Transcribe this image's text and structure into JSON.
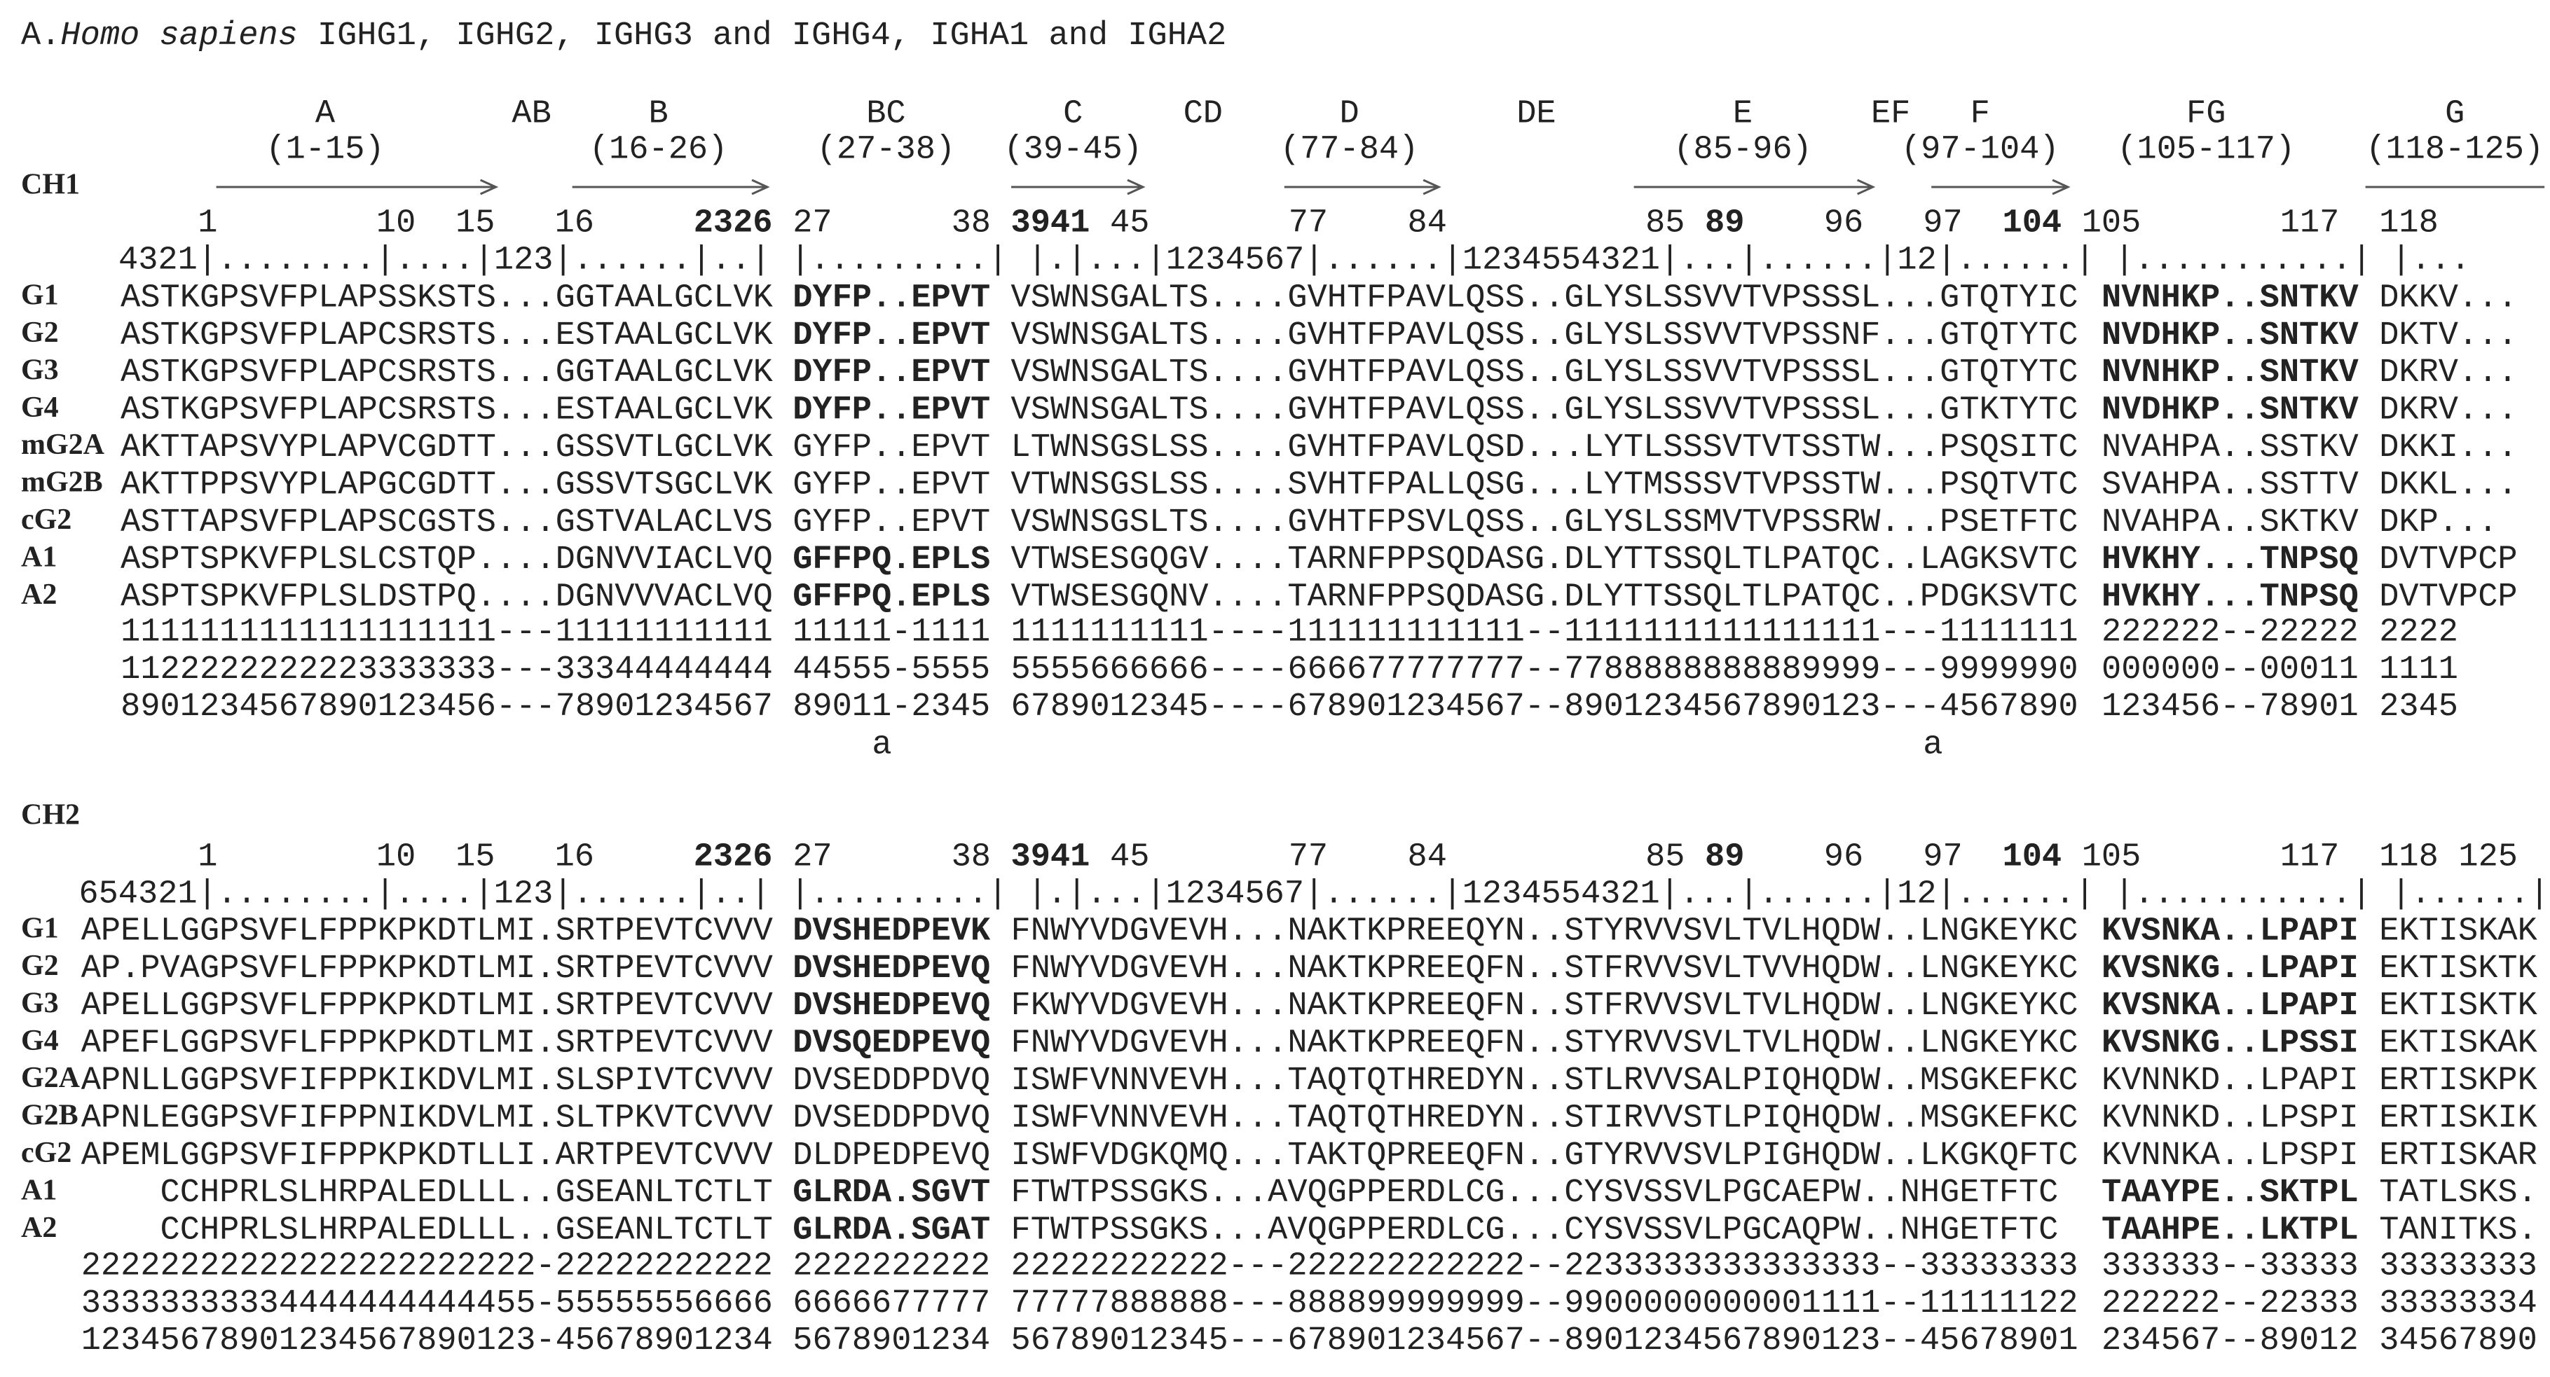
{
  "title": {
    "prefix": "A.",
    "species": "Homo sapiens",
    "rest": "IGHG1, IGHG2, IGHG3 and IGHG4, IGHA1 and IGHA2"
  },
  "ch1": {
    "label": "CH1",
    "strands": [
      {
        "name": "A",
        "range": "(1-15)"
      },
      {
        "name": "AB"
      },
      {
        "name": "B",
        "range": "(16-26)"
      },
      {
        "name": "BC",
        "range": "(27-38)",
        "color": "#d42a2a"
      },
      {
        "name": "C",
        "range": "(39-45)"
      },
      {
        "name": "CD"
      },
      {
        "name": "D",
        "range": "(77-84)"
      },
      {
        "name": "DE"
      },
      {
        "name": "E",
        "range": "(85-96)"
      },
      {
        "name": "EF"
      },
      {
        "name": "F",
        "range": "(97-104)"
      },
      {
        "name": "FG",
        "range": "(105-117)",
        "color": "#d42a2a"
      },
      {
        "name": "G",
        "range": "(118-125)"
      }
    ],
    "numbers": [
      "1",
      "10",
      "15",
      "16",
      "2326",
      "27",
      "38",
      "3941",
      "45",
      "77",
      "84",
      "85",
      "89",
      "96",
      "97",
      "104",
      "105",
      "117",
      "118"
    ],
    "ruler": "4321|........|....|123|......|..| |.........| |.|...|1234567|......|1234554321|...|......|12|......| |...........| |...",
    "rows": [
      {
        "label": "G1",
        "bold": true,
        "segments": [
          "ASTKGPSVFPLAPSSKSTS...GGTAALGCLVK",
          "DYFP..EPVT",
          "VSWNSGALTS....GVHTFPAVLQSS..GLYSLSSVVTVPSSSL...GTQTYIC",
          "NVNHKP..SNTKV",
          "DKKV..."
        ]
      },
      {
        "label": "G2",
        "bold": true,
        "segments": [
          "ASTKGPSVFPLAPCSRSTS...ESTAALGCLVK",
          "DYFP..EPVT",
          "VSWNSGALTS....GVHTFPAVLQSS..GLYSLSSVVTVPSSNF...GTQTYTC",
          "NVDHKP..SNTKV",
          "DKTV..."
        ]
      },
      {
        "label": "G3",
        "bold": true,
        "segments": [
          "ASTKGPSVFPLAPCSRSTS...GGTAALGCLVK",
          "DYFP..EPVT",
          "VSWNSGALTS....GVHTFPAVLQSS..GLYSLSSVVTVPSSSL...GTQTYTC",
          "NVNHKP..SNTKV",
          "DKRV..."
        ]
      },
      {
        "label": "G4",
        "bold": true,
        "segments": [
          "ASTKGPSVFPLAPCSRSTS...ESTAALGCLVK",
          "DYFP..EPVT",
          "VSWNSGALTS....GVHTFPAVLQSS..GLYSLSSVVTVPSSSL...GTKTYTC",
          "NVDHKP..SNTKV",
          "DKRV..."
        ]
      },
      {
        "label": "mG2A",
        "bold": false,
        "segments": [
          "AKTTAPSVYPLAPVCGDTT...GSSVTLGCLVK",
          "GYFP..EPVT",
          "LTWNSGSLSS....GVHTFPAVLQSD...LYTLSSSVTVTSSTW...PSQSITC",
          "NVAHPA..SSTKV",
          "DKKI..."
        ]
      },
      {
        "label": "mG2B",
        "bold": false,
        "segments": [
          "AKTTPPSVYPLAPGCGDTT...GSSVTSGCLVK",
          "GYFP..EPVT",
          "VTWNSGSLSS....SVHTFPALLQSG...LYTMSSSVTVPSSTW...PSQTVTC",
          "SVAHPA..SSTTV",
          "DKKL..."
        ]
      },
      {
        "label": "cG2",
        "bold": false,
        "segments": [
          "ASTTAPSVFPLAPSCGSTS...GSTVALACLVS",
          "GYFP..EPVT",
          "VSWNSGSLTS....GVHTFPSVLQSS..GLYSLSSMVTVPSSRW...PSETFTC",
          "NVAHPA..SKTKV",
          "DKP..."
        ]
      },
      {
        "label": "A1",
        "bold": true,
        "segments": [
          "ASPTSPKVFPLSLCSTQP....DGNVVIACLVQ",
          "GFFPQ.EPLS",
          "VTWSESGQGV....TARNFPPSQDASG.DLYTTSSQLTLPATQC..LAGKSVTC",
          "HVKHY...TNPSQ",
          "DVTVPCP"
        ]
      },
      {
        "label": "A2",
        "bold": true,
        "segments": [
          "ASPTSPKVFPLSLDSTPQ....DGNVVVACLVQ",
          "GFFPQ.EPLS",
          "VTWSESGQNV....TARNFPPSQDASG.DLYTTSSQLTLPATQC..PDGKSVTC",
          "HVKHY...TNPSQ",
          "DVTVPCP"
        ]
      }
    ],
    "numbering": [
      [
        "1111111111111111111---11111111111",
        "11111-1111",
        "1111111111----111111111111--1111111111111111---1111111",
        "222222--22222",
        "2222"
      ],
      [
        "1122222222223333333---33344444444",
        "44555-5555",
        "5555666666----666677777777--7788888888889999---9999990",
        "000000--00011",
        "1111"
      ],
      [
        "8901234567890123456---78901234567",
        "89011-2345",
        "6789012345----678901234567--8901234567890123---4567890",
        "123456--78901",
        "2345"
      ]
    ],
    "footnotes": [
      "a",
      "a"
    ]
  },
  "ch2": {
    "label": "CH2",
    "numbers": [
      "1",
      "10",
      "15",
      "16",
      "2326",
      "27",
      "38",
      "3941",
      "45",
      "77",
      "84",
      "85",
      "89",
      "96",
      "97",
      "104",
      "105",
      "117",
      "118",
      "125"
    ],
    "ruler": "654321|........|....|123|......|..| |.........| |.|...|1234567|......|1234554321|...|......|12|......| |...........| |......|",
    "rows": [
      {
        "label": "G1",
        "bold": true,
        "segments": [
          "APELLGGPSVFLFPPKPKDTLMI.SRTPEVTCVVV",
          "DVSHEDPEVK",
          "FNWYVDGVEVH...NAKTKPREEQYN..STYRVVSVLTVLHQDW..LNGKEYKC",
          "KVSNKA..LPAPI",
          "EKTISKAK"
        ]
      },
      {
        "label": "G2",
        "bold": true,
        "segments": [
          "AP.PVAGPSVFLFPPKPKDTLMI.SRTPEVTCVVV",
          "DVSHEDPEVQ",
          "FNWYVDGVEVH...NAKTKPREEQFN..STFRVVSVLTVVHQDW..LNGKEYKC",
          "KVSNKG..LPAPI",
          "EKTISKTK"
        ]
      },
      {
        "label": "G3",
        "bold": true,
        "segments": [
          "APELLGGPSVFLFPPKPKDTLMI.SRTPEVTCVVV",
          "DVSHEDPEVQ",
          "FKWYVDGVEVH...NAKTKPREEQFN..STFRVVSVLTVLHQDW..LNGKEYKC",
          "KVSNKA..LPAPI",
          "EKTISKTK"
        ]
      },
      {
        "label": "G4",
        "bold": true,
        "segments": [
          "APEFLGGPSVFLFPPKPKDTLMI.SRTPEVTCVVV",
          "DVSQEDPEVQ",
          "FNWYVDGVEVH...NAKTKPREEQFN..STYRVVSVLTVLHQDW..LNGKEYKC",
          "KVSNKG..LPSSI",
          "EKTISKAK"
        ]
      },
      {
        "label": "G2A",
        "bold": false,
        "segments": [
          "APNLLGGPSVFIFPPKIKDVLMI.SLSPIVTCVVV",
          "DVSEDDPDVQ",
          "ISWFVNNVEVH...TAQTQTHREDYN..STLRVVSALPIQHQDW..MSGKEFKC",
          "KVNNKD..LPAPI",
          "ERTISKPK"
        ]
      },
      {
        "label": "G2B",
        "bold": false,
        "segments": [
          "APNLEGGPSVFIFPPNIKDVLMI.SLTPKVTCVVV",
          "DVSEDDPDVQ",
          "ISWFVNNVEVH...TAQTQTHREDYN..STIRVVSTLPIQHQDW..MSGKEFKC",
          "KVNNKD..LPSPI",
          "ERTISKIK"
        ]
      },
      {
        "label": "cG2",
        "bold": false,
        "segments": [
          "APEMLGGPSVFIFPPKPKDTLLI.ARTPEVTCVVV",
          "DLDPEDPEVQ",
          "ISWFVDGKQMQ...TAKTQPREEQFN..GTYRVVSVLPIGHQDW..LKGKQFTC",
          "KVNNKA..LPSPI",
          "ERTISKAR"
        ]
      },
      {
        "label": "A1",
        "bold": true,
        "segments": [
          "CCHPRLSLHRPALEDLLL..GSEANLTCTLT",
          "GLRDA.SGVT",
          "FTWTPSSGKS...AVQGPPERDLCG...CYSVSSVLPGCAEPW..NHGETFTC",
          "TAAYPE..SKTPL",
          "TATLSKS."
        ]
      },
      {
        "label": "A2",
        "bold": true,
        "segments": [
          "CCHPRLSLHRPALEDLLL..GSEANLTCTLT",
          "GLRDA.SGAT",
          "FTWTPSSGKS...AVQGPPERDLCG...CYSVSSVLPGCAQPW..NHGETFTC",
          "TAAHPE..LKTPL",
          "TANITKS."
        ]
      }
    ],
    "numbering": [
      [
        "22222222222222222222222-22222222222",
        "2222222222",
        "22222222222---222222222222--2233333333333333--33333333",
        "333333--33333",
        "33333333"
      ],
      [
        "33333333334444444444455-55555556666",
        "6666677777",
        "77777888888---888899999999--9900000000001111--11111122",
        "222222--22333",
        "33333334"
      ],
      [
        "12345678901234567890123-45678901234",
        "5678901234",
        "56789012345---678901234567--8901234567890123--45678901",
        "234567--89012",
        "34567890"
      ]
    ]
  }
}
